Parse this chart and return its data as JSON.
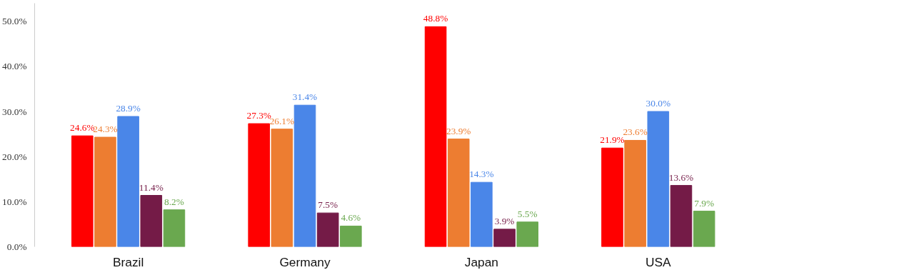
{
  "chart_data": {
    "type": "bar",
    "categories": [
      "Brazil",
      "Germany",
      "Japan",
      "USA"
    ],
    "series": [
      {
        "color": "#ff0000",
        "values": [
          24.6,
          27.3,
          48.8,
          21.9
        ],
        "value_labels": [
          "24.6%",
          "27.3%",
          "48.8%",
          "21.9%"
        ]
      },
      {
        "color": "#ed7d31",
        "values": [
          24.3,
          26.1,
          23.9,
          23.6
        ],
        "value_labels": [
          "24.3%",
          "26.1%",
          "23.9%",
          "23.6%"
        ]
      },
      {
        "color": "#4a86e8",
        "values": [
          28.9,
          31.4,
          14.3,
          30.0
        ],
        "value_labels": [
          "28.9%",
          "31.4%",
          "14.3%",
          "30.0%"
        ]
      },
      {
        "color": "#741b47",
        "values": [
          11.4,
          7.5,
          3.9,
          13.6
        ],
        "value_labels": [
          "11.4%",
          "7.5%",
          "3.9%",
          "13.6%"
        ]
      },
      {
        "color": "#6aa84f",
        "values": [
          8.2,
          4.6,
          5.5,
          7.9
        ],
        "value_labels": [
          "8.2%",
          "4.6%",
          "5.5%",
          "7.9%"
        ]
      }
    ],
    "ylim": [
      0,
      54
    ],
    "yticks": [
      {
        "value": 0,
        "label": "0.0%"
      },
      {
        "value": 10,
        "label": "10.0%"
      },
      {
        "value": 20,
        "label": "20.0%"
      },
      {
        "value": 30,
        "label": "30.0%"
      },
      {
        "value": 40,
        "label": "40.0%"
      },
      {
        "value": 50,
        "label": "50.0%"
      }
    ],
    "grid": false
  }
}
